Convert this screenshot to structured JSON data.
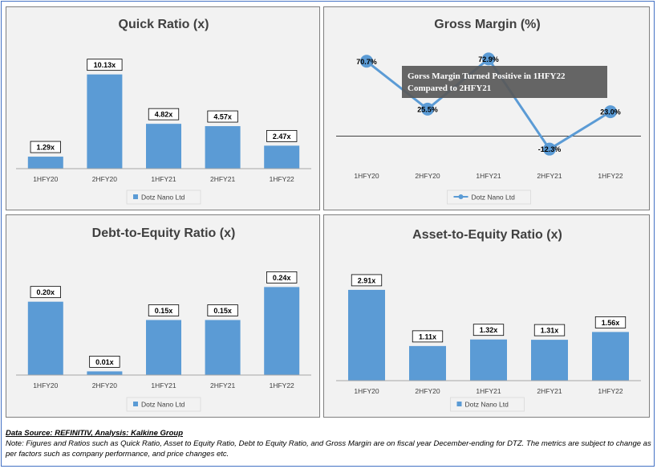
{
  "colors": {
    "bar": "#5b9bd5",
    "line": "#5b9bd5",
    "panel_bg": "#f2f2f2",
    "annotation_bg": "#595959",
    "annotation_text": "#ffffff",
    "border": "#4472c4"
  },
  "footer": {
    "source": "Data Source: REFINITIV, Analysis: Kalkine Group",
    "note": "Note: Figures and Ratios such as Quick Ratio, Asset to Equity Ratio, Debt to Equity Ratio, and Gross Margin are on fiscal year December-ending for DTZ. The metrics are subject to change as per factors such as company performance, and price changes etc."
  },
  "chart_data": [
    {
      "type": "bar",
      "title": "Quick Ratio (x)",
      "categories": [
        "1HFY20",
        "2HFY20",
        "1HFY21",
        "2HFY21",
        "1HFY22"
      ],
      "series": [
        {
          "name": "Dotz Nano Ltd",
          "values": [
            1.29,
            10.13,
            4.82,
            4.57,
            2.47
          ]
        }
      ],
      "data_labels": [
        "1.29x",
        "10.13x",
        "4.82x",
        "4.57x",
        "2.47x"
      ],
      "ylim": [
        0,
        12
      ],
      "grid": false,
      "legend": "bottom"
    },
    {
      "type": "line",
      "title": "Gross Margin (%)",
      "categories": [
        "1HFY20",
        "2HFY20",
        "1HFY21",
        "2HFY21",
        "1HFY22"
      ],
      "series": [
        {
          "name": "Dotz Nano Ltd",
          "values": [
            70.7,
            25.5,
            72.9,
            -12.3,
            23.0
          ]
        }
      ],
      "data_labels": [
        "70.7%",
        "25.5%",
        "72.9%",
        "-12.3%",
        "23.0%"
      ],
      "ylim": [
        -30,
        80
      ],
      "annotation": "Gorss Margin Turned Positive in 1HFY22 Compared to 2HFY21",
      "grid": false,
      "legend": "bottom"
    },
    {
      "type": "bar",
      "title": "Debt-to-Equity Ratio (x)",
      "categories": [
        "1HFY20",
        "2HFY20",
        "1HFY21",
        "2HFY21",
        "1HFY22"
      ],
      "series": [
        {
          "name": "Dotz Nano Ltd",
          "values": [
            0.2,
            0.01,
            0.15,
            0.15,
            0.24
          ]
        }
      ],
      "data_labels": [
        "0.20x",
        "0.01x",
        "0.15x",
        "0.15x",
        "0.24x"
      ],
      "ylim": [
        0,
        0.3
      ],
      "grid": false,
      "legend": "bottom"
    },
    {
      "type": "bar",
      "title": "Asset-to-Equity Ratio (x)",
      "categories": [
        "1HFY20",
        "2HFY20",
        "1HFY21",
        "2HFY21",
        "1HFY22"
      ],
      "series": [
        {
          "name": "Dotz Nano Ltd",
          "values": [
            2.91,
            1.11,
            1.32,
            1.31,
            1.56
          ]
        }
      ],
      "data_labels": [
        "2.91x",
        "1.11x",
        "1.32x",
        "1.31x",
        "1.56x"
      ],
      "ylim": [
        0,
        3.5
      ],
      "grid": false,
      "legend": "bottom"
    }
  ]
}
